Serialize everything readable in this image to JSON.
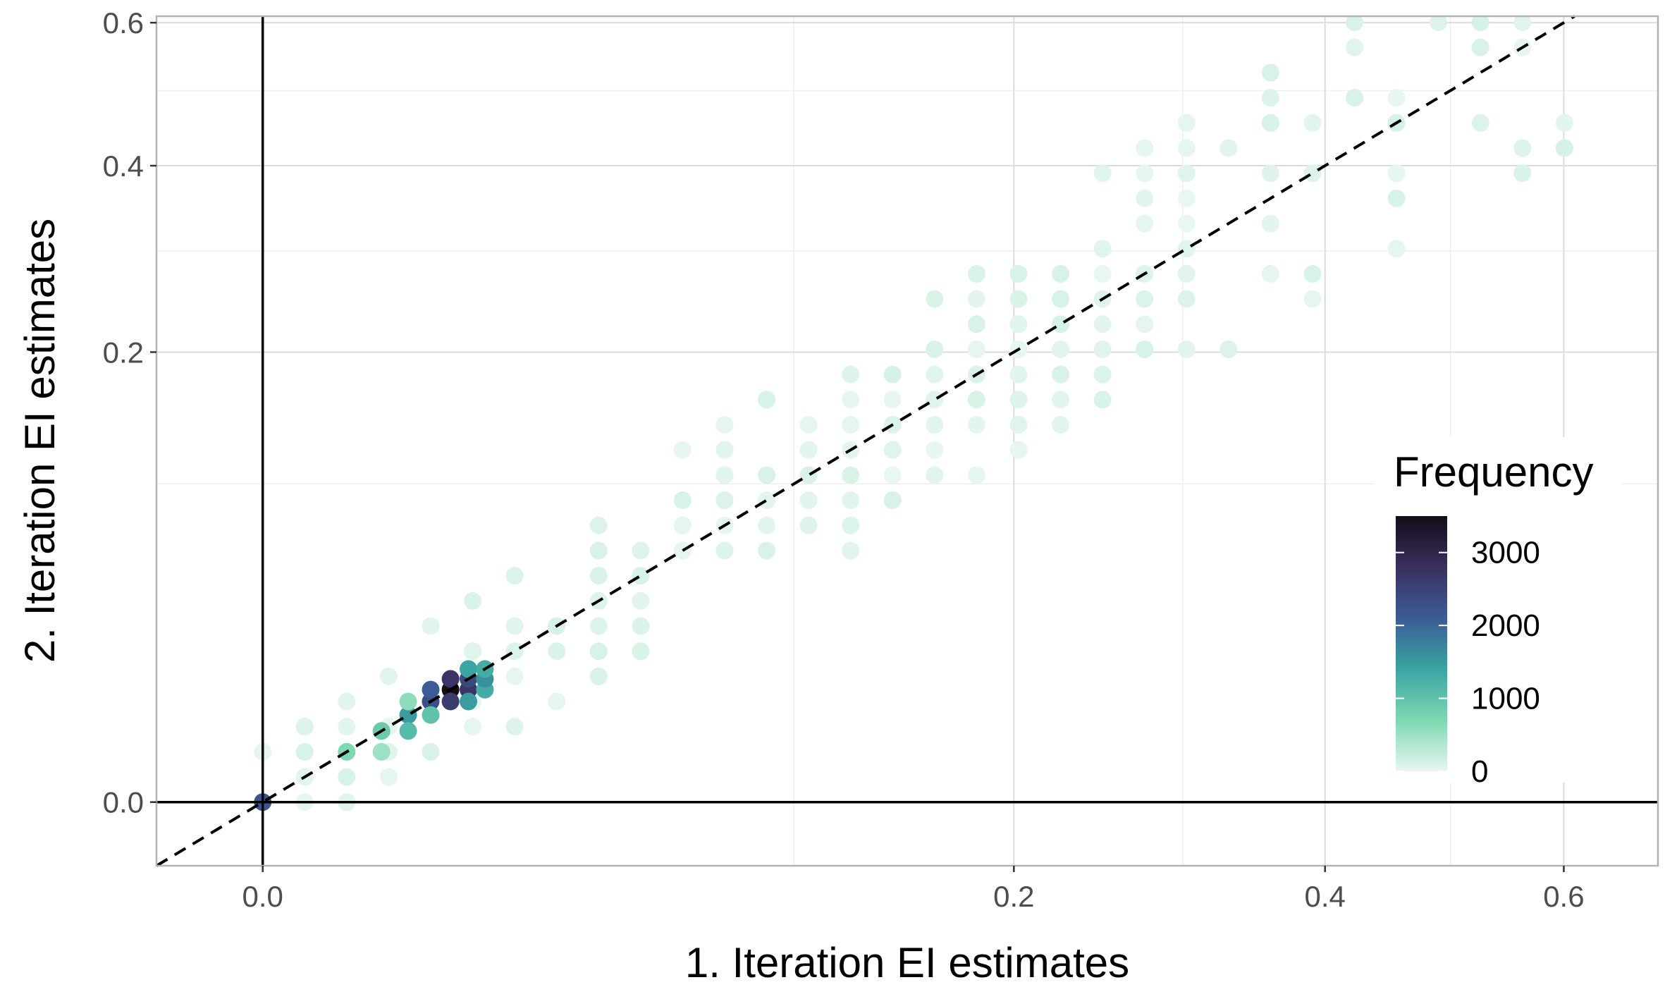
{
  "chart_data": {
    "type": "scatter",
    "xlabel": "1. Iteration EI estimates",
    "ylabel": "2. Iteration EI estimates",
    "xscale": "sqrt",
    "yscale": "sqrt",
    "xlim": [
      -0.004,
      0.69
    ],
    "ylim": [
      -0.004,
      0.61
    ],
    "x_ticks": [
      0.0,
      0.2,
      0.4,
      0.6
    ],
    "x_tick_labels": [
      "0.0",
      "0.2",
      "0.4",
      "0.6"
    ],
    "y_ticks": [
      0.0,
      0.2,
      0.4,
      0.6
    ],
    "y_tick_labels": [
      "0.0",
      "0.2",
      "0.4",
      "0.6"
    ],
    "x_minor": [
      0.1,
      0.3,
      0.5
    ],
    "y_minor": [
      0.1,
      0.3,
      0.5
    ],
    "reference_lines": [
      {
        "type": "hline",
        "value": 0,
        "style": "solid"
      },
      {
        "type": "vline",
        "value": 0,
        "style": "solid"
      },
      {
        "type": "identity",
        "style": "dashed"
      }
    ],
    "legend": {
      "title": "Frequency",
      "position": "right",
      "labels": [
        "3000",
        "2000",
        "1000",
        "0"
      ],
      "values": [
        3000,
        2000,
        1000,
        0
      ],
      "range": [
        0,
        3500
      ],
      "colors": [
        "#e8f7f0",
        "#7ed8b2",
        "#3aa5a2",
        "#3b5c96",
        "#3a2f5e",
        "#130d18"
      ]
    },
    "grid_steps": [
      0,
      0.01,
      0.0225,
      0.04,
      0.0625,
      0.09,
      0.1225,
      0.16,
      0.2025,
      0.25
    ],
    "heavy_points": [
      {
        "x": 0.0,
        "y": 0.0,
        "f": 2200
      },
      {
        "x": 0.0025,
        "y": 0.0025,
        "f": 700
      },
      {
        "x": 0.005,
        "y": 0.005,
        "f": 900
      },
      {
        "x": 0.005,
        "y": 0.0025,
        "f": 500
      },
      {
        "x": 0.0075,
        "y": 0.0075,
        "f": 1500
      },
      {
        "x": 0.0075,
        "y": 0.005,
        "f": 1100
      },
      {
        "x": 0.0075,
        "y": 0.01,
        "f": 600
      },
      {
        "x": 0.01,
        "y": 0.01,
        "f": 2300
      },
      {
        "x": 0.01,
        "y": 0.0125,
        "f": 2100
      },
      {
        "x": 0.01,
        "y": 0.0075,
        "f": 1000
      },
      {
        "x": 0.0125,
        "y": 0.0125,
        "f": 3700
      },
      {
        "x": 0.0125,
        "y": 0.01,
        "f": 2600
      },
      {
        "x": 0.0125,
        "y": 0.015,
        "f": 2700
      },
      {
        "x": 0.015,
        "y": 0.0125,
        "f": 2700
      },
      {
        "x": 0.015,
        "y": 0.015,
        "f": 2400
      },
      {
        "x": 0.015,
        "y": 0.01,
        "f": 1500
      },
      {
        "x": 0.015,
        "y": 0.0175,
        "f": 1400
      },
      {
        "x": 0.0175,
        "y": 0.0125,
        "f": 1300
      },
      {
        "x": 0.0175,
        "y": 0.015,
        "f": 1600
      },
      {
        "x": 0.0175,
        "y": 0.0175,
        "f": 1300
      }
    ]
  }
}
